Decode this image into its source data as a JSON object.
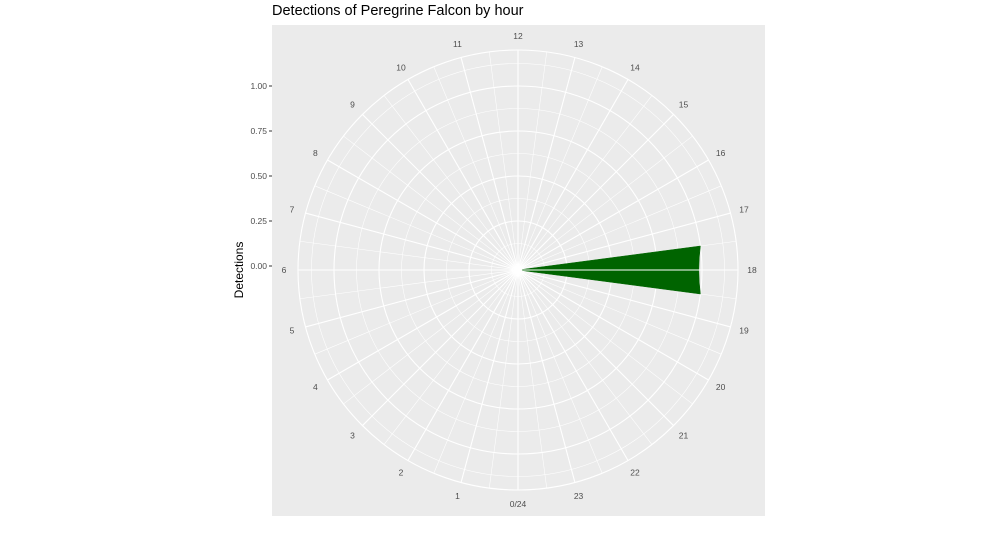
{
  "chart_data": {
    "type": "polar-bar",
    "title": "Detections of Peregrine Falcon by hour",
    "ylabel": "Detections",
    "xlabel": "",
    "categories": [
      "0/24",
      "1",
      "2",
      "3",
      "4",
      "5",
      "6",
      "7",
      "8",
      "9",
      "10",
      "11",
      "12",
      "13",
      "14",
      "15",
      "16",
      "17",
      "18",
      "19",
      "20",
      "21",
      "22",
      "23"
    ],
    "hours": [
      0,
      1,
      2,
      3,
      4,
      5,
      6,
      7,
      8,
      9,
      10,
      11,
      12,
      13,
      14,
      15,
      16,
      17,
      18,
      19,
      20,
      21,
      22,
      23
    ],
    "values": [
      0,
      0,
      0,
      0,
      0,
      0,
      0,
      0,
      0,
      0,
      0,
      0,
      0,
      0,
      0,
      0,
      0,
      0,
      1,
      0,
      0,
      0,
      0,
      0
    ],
    "y_ticks": [
      0.0,
      0.25,
      0.5,
      0.75,
      1.0
    ],
    "y_tick_labels": [
      "0.00",
      "0.25",
      "0.50",
      "0.75",
      "1.00"
    ],
    "ylim": [
      0,
      1.2
    ],
    "grid": true,
    "legend": "none",
    "bar_color": "#006400",
    "panel_color": "#ebebeb",
    "grid_color": "#ffffff"
  }
}
